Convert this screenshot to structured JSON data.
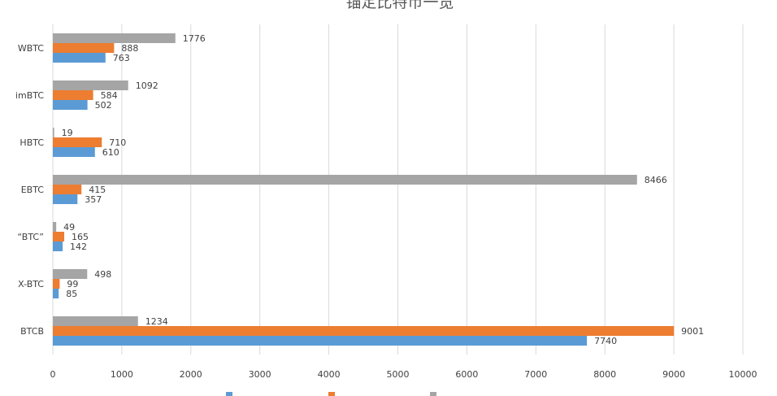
{
  "chart_data": {
    "type": "bar",
    "orientation": "horizontal",
    "title": "锚定比特币一览",
    "categories": [
      "WBTC",
      "imBTC",
      "HBTC",
      "EBTC",
      "“BTC”",
      "X-BTC",
      "BTCB"
    ],
    "series": [
      {
        "name": "",
        "color": "#5B9BD5",
        "values": [
          763,
          502,
          610,
          357,
          142,
          85,
          7740
        ]
      },
      {
        "name": "",
        "color": "#ED7D31",
        "values": [
          888,
          584,
          710,
          415,
          165,
          99,
          9001
        ]
      },
      {
        "name": "",
        "color": "#A5A5A5",
        "values": [
          1776,
          1092,
          19,
          8466,
          49,
          498,
          1234
        ]
      }
    ],
    "xlim": [
      0,
      10000
    ],
    "xticks": [
      0,
      1000,
      2000,
      3000,
      4000,
      5000,
      6000,
      7000,
      8000,
      9000,
      10000
    ],
    "grid": "vertical",
    "legend_position": "bottom",
    "xlabel": "",
    "ylabel": ""
  }
}
